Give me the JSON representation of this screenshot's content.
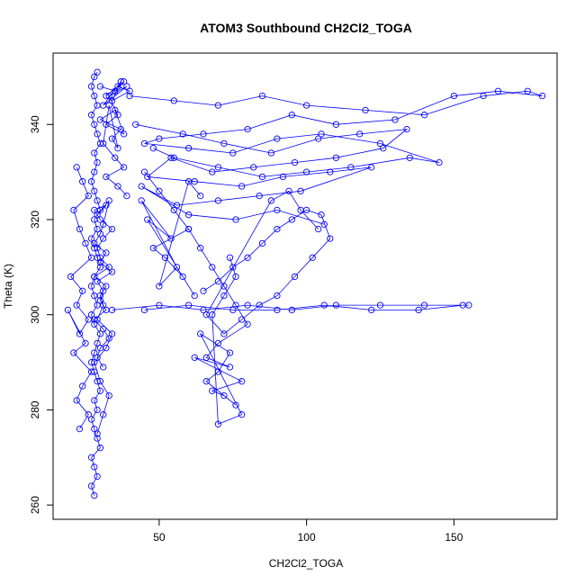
{
  "chart_data": {
    "type": "scatter",
    "title": "ATOM3 Southbound CH2Cl2_TOGA",
    "xlabel": "CH2Cl2_TOGA",
    "ylabel": "Theta (K)",
    "xlim": [
      14,
      185
    ],
    "ylim": [
      257,
      355
    ],
    "xticks": [
      50,
      100,
      150
    ],
    "yticks": [
      260,
      280,
      300,
      320,
      340
    ],
    "grid": false,
    "legend": "none",
    "colors": {
      "series": "#0000ff",
      "axis": "#000000"
    },
    "marker": "open-circle",
    "connected": true,
    "series": [
      {
        "x": [
          28,
          27,
          29,
          28,
          27,
          30,
          29,
          28,
          27,
          29,
          28,
          30,
          29,
          28,
          27,
          28,
          29,
          30,
          28,
          27,
          29,
          28,
          27,
          28,
          30,
          29,
          28,
          27,
          29,
          28,
          30,
          29,
          28,
          27,
          28,
          29,
          28,
          30,
          29,
          28,
          27,
          29,
          28,
          27,
          28,
          29
        ],
        "y": [
          262,
          264,
          266,
          268,
          270,
          272,
          274,
          276,
          278,
          280,
          282,
          284,
          286,
          288,
          290,
          292,
          294,
          296,
          298,
          300,
          302,
          304,
          306,
          308,
          310,
          312,
          314,
          316,
          318,
          320,
          322,
          324,
          326,
          328,
          330,
          332,
          334,
          336,
          338,
          340,
          342,
          344,
          346,
          348,
          350,
          351
        ]
      },
      {
        "x": [
          29,
          31,
          33,
          30,
          28,
          32,
          34,
          29,
          31,
          30,
          32,
          28,
          33,
          30,
          29,
          31,
          34,
          30,
          28,
          32,
          29,
          33,
          31,
          30,
          28,
          32,
          30,
          34,
          29,
          31,
          30,
          32,
          28,
          31,
          33,
          30,
          29,
          31
        ],
        "y": [
          275,
          279,
          283,
          286,
          290,
          293,
          296,
          299,
          302,
          304,
          306,
          308,
          310,
          312,
          314,
          316,
          318,
          320,
          322,
          323,
          321,
          324,
          319,
          317,
          315,
          313,
          311,
          309,
          307,
          305,
          303,
          301,
          299,
          297,
          295,
          293,
          291,
          289
        ]
      },
      {
        "x": [
          22,
          24,
          26,
          21,
          23,
          25,
          27,
          20,
          24,
          22,
          26,
          23,
          19,
          25,
          21,
          27,
          24,
          22,
          26,
          23
        ],
        "y": [
          331,
          328,
          325,
          322,
          318,
          315,
          312,
          308,
          305,
          302,
          299,
          296,
          301,
          294,
          292,
          288,
          285,
          282,
          279,
          276
        ]
      },
      {
        "x": [
          30,
          35,
          38,
          32,
          36,
          40,
          34,
          37,
          31,
          39,
          33,
          36,
          32,
          38,
          35,
          30,
          37,
          34,
          36,
          33,
          31,
          35,
          38,
          32,
          36,
          39
        ],
        "y": [
          348,
          347,
          349,
          346,
          348,
          347,
          345,
          349,
          344,
          348,
          346,
          342,
          340,
          338,
          343,
          341,
          339,
          337,
          335,
          344,
          336,
          333,
          331,
          329,
          327,
          325
        ]
      },
      {
        "x": [
          40,
          55,
          70,
          85,
          100,
          120,
          140,
          160,
          175,
          180,
          165,
          150,
          130,
          110,
          95,
          80,
          65,
          50,
          45,
          60,
          75,
          90,
          105,
          125,
          145,
          135,
          115,
          100,
          85,
          70,
          55,
          48
        ],
        "y": [
          346,
          345,
          344,
          346,
          344,
          343,
          342,
          346,
          347,
          346,
          347,
          346,
          341,
          340,
          342,
          339,
          338,
          337,
          336,
          335,
          334,
          337,
          338,
          336,
          332,
          333,
          331,
          330,
          329,
          331,
          333,
          335
        ]
      },
      {
        "x": [
          42,
          58,
          72,
          88,
          104,
          118,
          134,
          126,
          110,
          96,
          82,
          68,
          54,
          46,
          62,
          78,
          92,
          108,
          122,
          98,
          84,
          70,
          56,
          44,
          60,
          76,
          90,
          106
        ],
        "y": [
          340,
          338,
          336,
          334,
          337,
          338,
          339,
          335,
          333,
          332,
          331,
          330,
          333,
          329,
          328,
          327,
          329,
          330,
          331,
          326,
          325,
          324,
          323,
          327,
          321,
          320,
          322,
          319
        ]
      },
      {
        "x": [
          34,
          50,
          65,
          80,
          95,
          110,
          125,
          140,
          155,
          153,
          138,
          122,
          106,
          90,
          75,
          60,
          45
        ],
        "y": [
          301,
          302,
          301,
          302,
          301,
          302,
          302,
          302,
          302,
          302,
          301,
          301,
          302,
          301,
          301,
          302,
          301
        ]
      },
      {
        "x": [
          60,
          64,
          68,
          72,
          76,
          80,
          70,
          66,
          74,
          62,
          78,
          68,
          72,
          76,
          66,
          70,
          74,
          64,
          78,
          70,
          68,
          72,
          76,
          74
        ],
        "y": [
          318,
          314,
          310,
          306,
          302,
          298,
          294,
          291,
          289,
          291,
          286,
          284,
          283,
          281,
          286,
          288,
          292,
          296,
          279,
          277,
          300,
          304,
          308,
          312
        ]
      },
      {
        "x": [
          65,
          70,
          75,
          80,
          85,
          90,
          95,
          100,
          105,
          108,
          102,
          96,
          90,
          84,
          78,
          72,
          66,
          88,
          94,
          98,
          104
        ],
        "y": [
          305,
          307,
          310,
          312,
          315,
          318,
          320,
          322,
          321,
          316,
          312,
          308,
          304,
          302,
          299,
          296,
          300,
          324,
          326,
          322,
          318
        ]
      },
      {
        "x": [
          45,
          50,
          55,
          60,
          48,
          52,
          58,
          62,
          46,
          54,
          44,
          56,
          50,
          60,
          64
        ],
        "y": [
          330,
          326,
          322,
          318,
          314,
          312,
          308,
          304,
          320,
          316,
          324,
          310,
          306,
          328,
          325
        ]
      }
    ]
  }
}
